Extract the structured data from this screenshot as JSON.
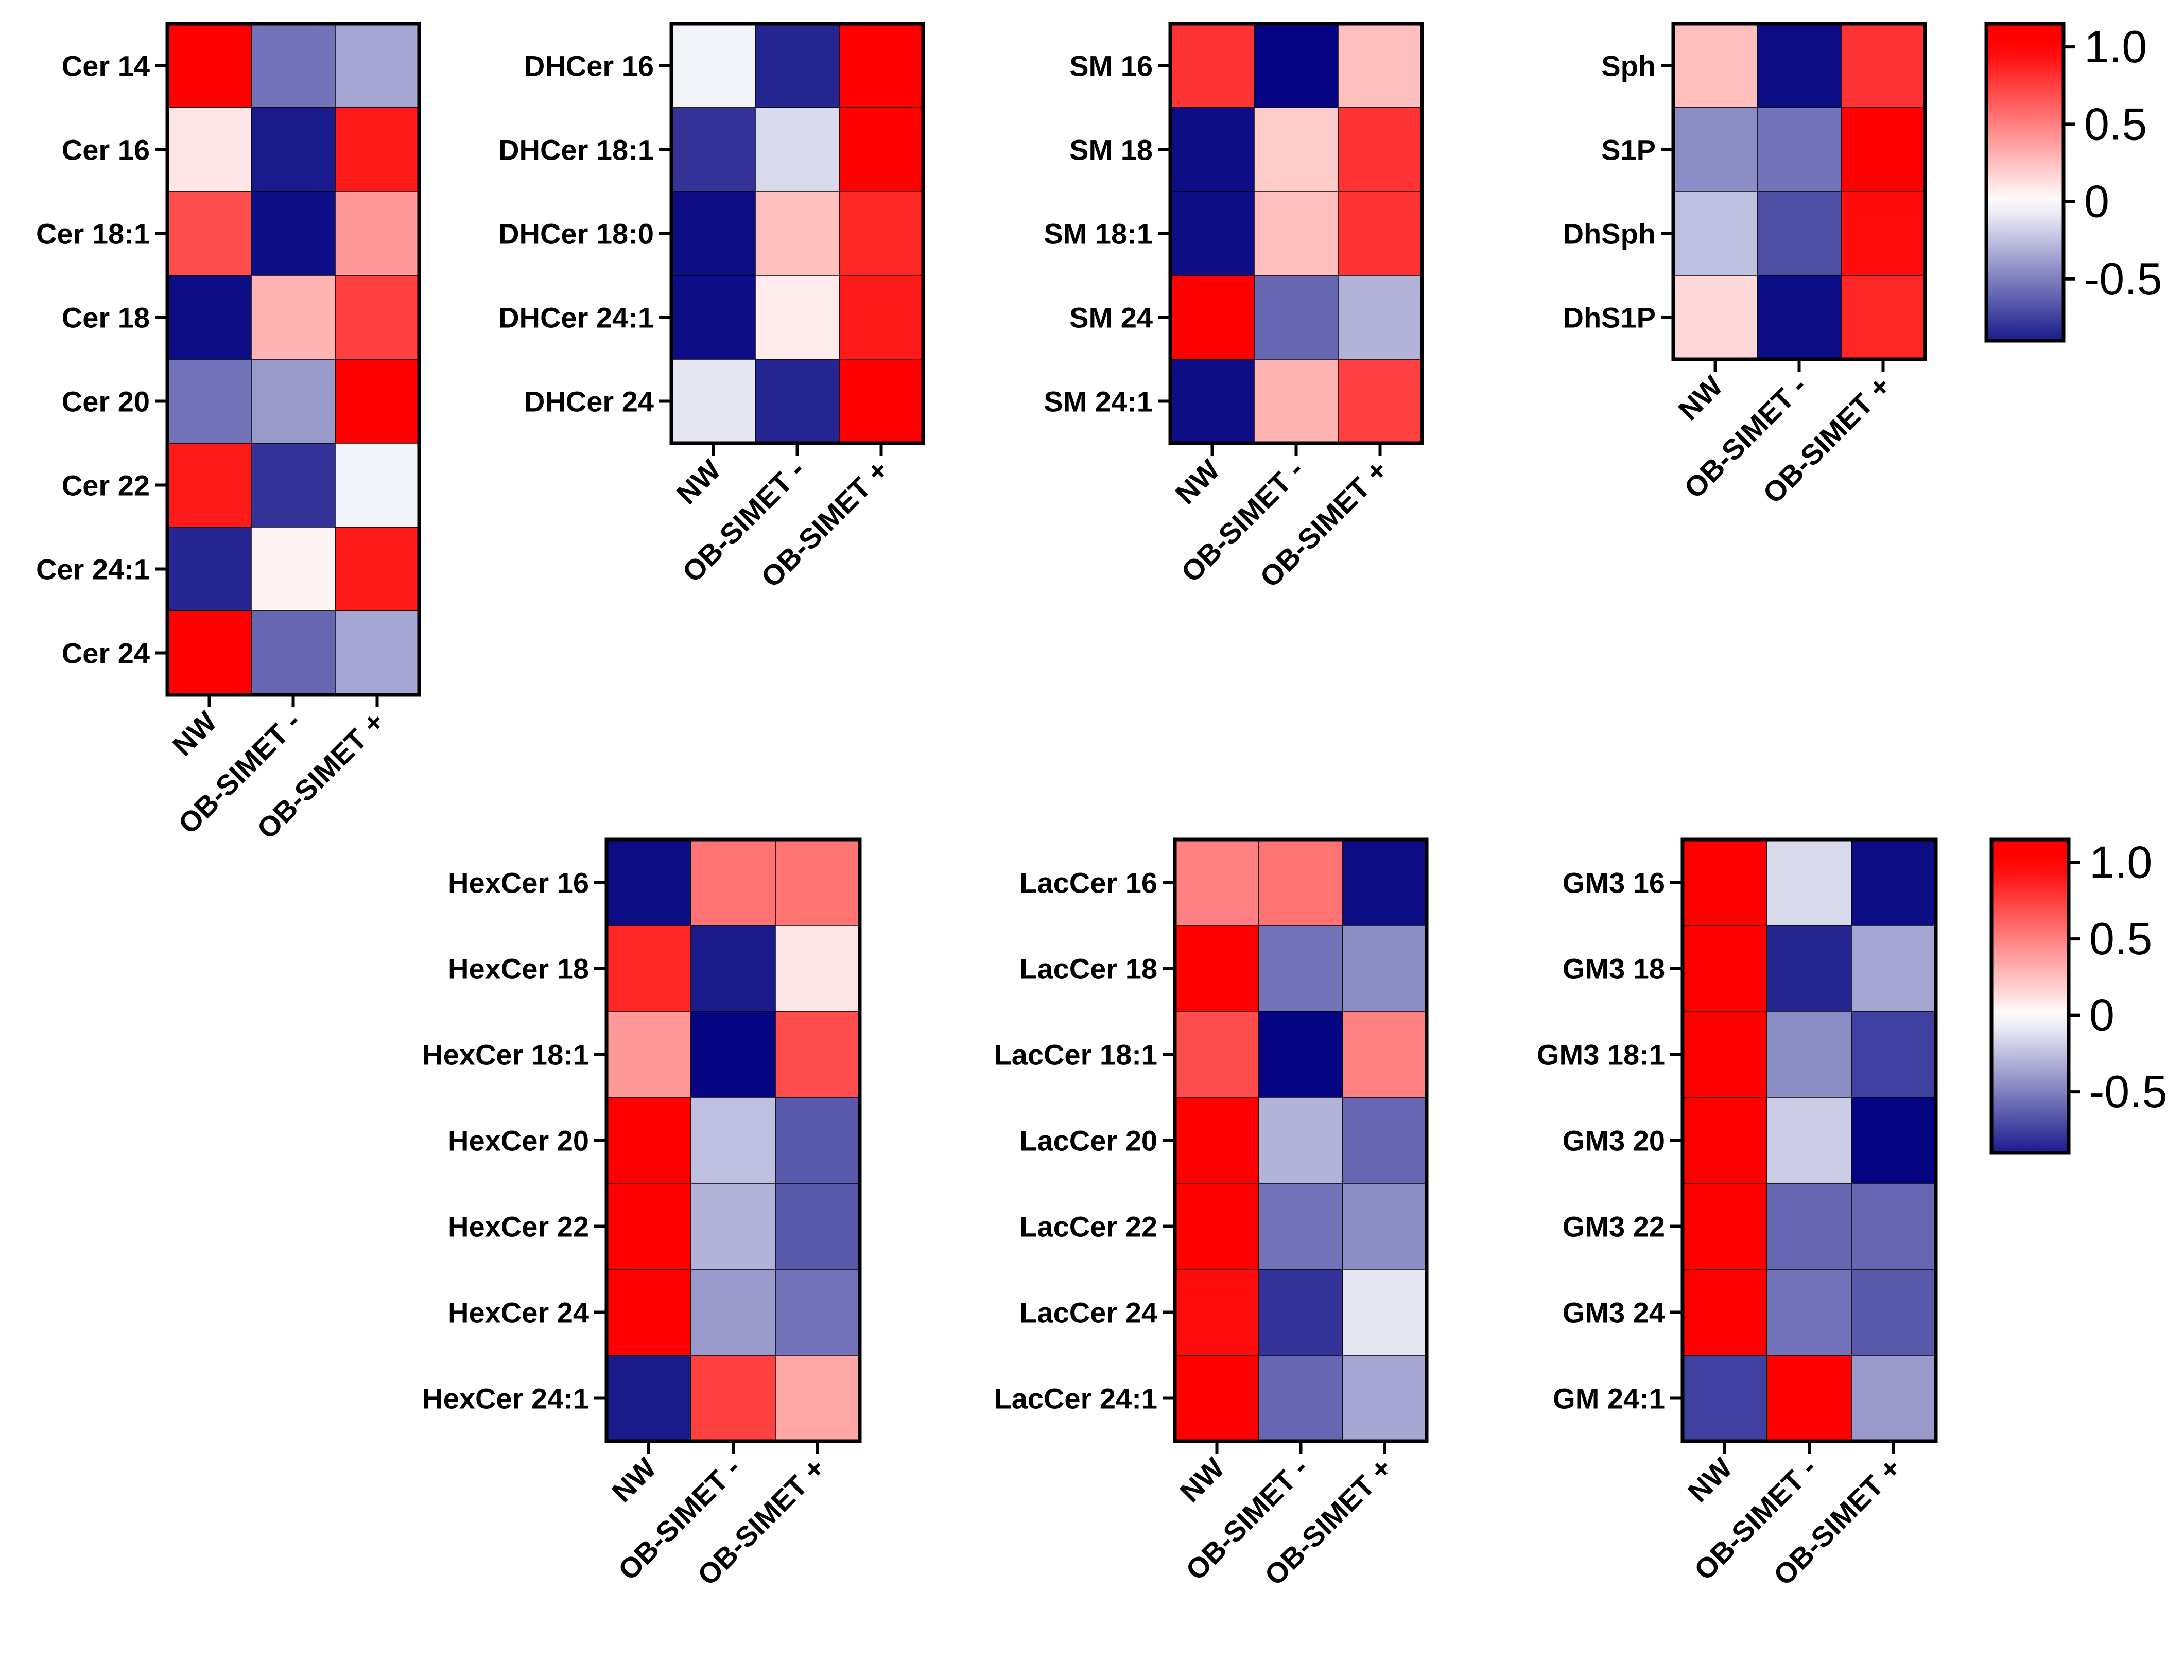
{
  "colors": {
    "low": "#000080",
    "mid": "#ffffff",
    "high": "#ff0000"
  },
  "chart_data": [
    {
      "type": "heatmap",
      "name": "ceramides",
      "columns": [
        "NW",
        "OB-SIMET -",
        "OB-SIMET +"
      ],
      "rows": [
        "Cer 14",
        "Cer 16",
        "Cer 18:1",
        "Cer 18",
        "Cer 20",
        "Cer 22",
        "Cer 24:1",
        "Cer 24"
      ],
      "values": [
        [
          1.0,
          -0.55,
          -0.35
        ],
        [
          0.1,
          -0.9,
          0.9
        ],
        [
          0.7,
          -0.95,
          0.4
        ],
        [
          -0.95,
          0.3,
          0.75
        ],
        [
          -0.55,
          -0.4,
          1.0
        ],
        [
          0.9,
          -0.8,
          -0.05
        ],
        [
          -0.85,
          0.05,
          0.9
        ],
        [
          1.0,
          -0.6,
          -0.35
        ]
      ]
    },
    {
      "type": "heatmap",
      "name": "dihydroceramides",
      "columns": [
        "NW",
        "OB-SIMET -",
        "OB-SIMET +"
      ],
      "rows": [
        "DHCer 16",
        "DHCer 18:1",
        "DHCer 18:0",
        "DHCer 24:1",
        "DHCer 24"
      ],
      "values": [
        [
          -0.05,
          -0.85,
          1.0
        ],
        [
          -0.8,
          -0.15,
          1.0
        ],
        [
          -0.95,
          0.25,
          0.85
        ],
        [
          -0.95,
          0.08,
          0.9
        ],
        [
          -0.1,
          -0.85,
          1.0
        ]
      ]
    },
    {
      "type": "heatmap",
      "name": "sphingomyelins",
      "columns": [
        "NW",
        "OB-SIMET -",
        "OB-SIMET +"
      ],
      "rows": [
        "SM 16",
        "SM 18",
        "SM 18:1",
        "SM 24",
        "SM 24:1"
      ],
      "values": [
        [
          0.8,
          -0.98,
          0.25
        ],
        [
          -0.95,
          0.2,
          0.8
        ],
        [
          -0.95,
          0.25,
          0.8
        ],
        [
          1.0,
          -0.6,
          -0.3
        ],
        [
          -0.95,
          0.3,
          0.75
        ]
      ]
    },
    {
      "type": "heatmap",
      "name": "sphingoid-bases",
      "columns": [
        "NW",
        "OB-SIMET -",
        "OB-SIMET +"
      ],
      "rows": [
        "Sph",
        "S1P",
        "DhSph",
        "DhS1P"
      ],
      "values": [
        [
          0.25,
          -0.95,
          0.8
        ],
        [
          -0.45,
          -0.55,
          1.0
        ],
        [
          -0.25,
          -0.7,
          0.95
        ],
        [
          0.15,
          -0.95,
          0.85
        ]
      ]
    },
    {
      "type": "heatmap",
      "name": "hexosylceramides",
      "columns": [
        "NW",
        "OB-SIMET -",
        "OB-SIMET +"
      ],
      "rows": [
        "HexCer 16",
        "HexCer 18",
        "HexCer 18:1",
        "HexCer 20",
        "HexCer 22",
        "HexCer 24",
        "HexCer 24:1"
      ],
      "values": [
        [
          -0.95,
          0.55,
          0.55
        ],
        [
          0.85,
          -0.9,
          0.1
        ],
        [
          0.4,
          -0.98,
          0.7
        ],
        [
          1.0,
          -0.25,
          -0.65
        ],
        [
          1.0,
          -0.3,
          -0.65
        ],
        [
          1.0,
          -0.4,
          -0.55
        ],
        [
          -0.9,
          0.75,
          0.35
        ]
      ]
    },
    {
      "type": "heatmap",
      "name": "lactosylceramides",
      "columns": [
        "NW",
        "OB-SIMET -",
        "OB-SIMET +"
      ],
      "rows": [
        "LacCer 16",
        "LacCer 18",
        "LacCer 18:1",
        "LacCer 20",
        "LacCer 22",
        "LacCer 24",
        "LacCer 24:1"
      ],
      "values": [
        [
          0.5,
          0.55,
          -0.95
        ],
        [
          1.0,
          -0.55,
          -0.45
        ],
        [
          0.7,
          -0.98,
          0.5
        ],
        [
          1.0,
          -0.3,
          -0.6
        ],
        [
          1.0,
          -0.55,
          -0.45
        ],
        [
          0.95,
          -0.8,
          -0.1
        ],
        [
          1.0,
          -0.6,
          -0.35
        ]
      ]
    },
    {
      "type": "heatmap",
      "name": "gangliosides",
      "columns": [
        "NW",
        "OB-SIMET -",
        "OB-SIMET +"
      ],
      "rows": [
        "GM3 16",
        "GM3 18",
        "GM3 18:1",
        "GM3 20",
        "GM3 22",
        "GM3 24",
        "GM 24:1"
      ],
      "values": [
        [
          1.0,
          -0.15,
          -0.95
        ],
        [
          1.0,
          -0.85,
          -0.35
        ],
        [
          1.0,
          -0.45,
          -0.75
        ],
        [
          1.0,
          -0.2,
          -0.98
        ],
        [
          1.0,
          -0.6,
          -0.6
        ],
        [
          1.0,
          -0.55,
          -0.65
        ],
        [
          -0.75,
          1.0,
          -0.4
        ]
      ]
    }
  ],
  "colorbars": [
    {
      "name": "colorbar-top",
      "range": [
        -0.9,
        1.15
      ],
      "ticks": [
        "1.0",
        "0.5",
        "0",
        "-0.5"
      ],
      "tick_values": [
        1.0,
        0.5,
        0,
        -0.5
      ]
    },
    {
      "name": "colorbar-bottom",
      "range": [
        -0.9,
        1.15
      ],
      "ticks": [
        "1.0",
        "0.5",
        "0",
        "-0.5"
      ],
      "tick_values": [
        1.0,
        0.5,
        0,
        -0.5
      ]
    }
  ]
}
